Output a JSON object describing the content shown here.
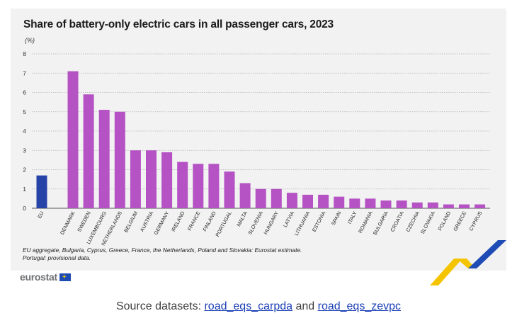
{
  "chart_data": {
    "type": "bar",
    "title": "Share of battery-only electric cars in all passenger cars, 2023",
    "unit": "(%)",
    "categories": [
      "EU",
      "DENMARK",
      "SWEDEN",
      "LUXEMBOURG",
      "NETHERLANDS",
      "BELGIUM",
      "AUSTRIA",
      "GERMANY",
      "IRELAND",
      "FRANCE",
      "FINLAND",
      "PORTUGAL",
      "MALTA",
      "SLOVENIA",
      "HUNGARY",
      "LATVIA",
      "LITHUANIA",
      "ESTONIA",
      "SPAIN",
      "ITALY",
      "ROMANIA",
      "BULGARIA",
      "CROATIA",
      "CZECHIA",
      "SLOVAKIA",
      "POLAND",
      "GREECE",
      "CYPRUS"
    ],
    "values": [
      1.7,
      7.1,
      5.9,
      5.1,
      5.0,
      3.0,
      3.0,
      2.9,
      2.4,
      2.3,
      2.3,
      1.9,
      1.3,
      1.0,
      1.0,
      0.8,
      0.7,
      0.7,
      0.6,
      0.5,
      0.5,
      0.4,
      0.4,
      0.3,
      0.3,
      0.2,
      0.2,
      0.2
    ],
    "y_ticks": [
      0,
      1,
      2,
      3,
      4,
      5,
      6,
      7,
      8
    ],
    "ylim": [
      0,
      8
    ],
    "grid": true,
    "colors": {
      "eu": "#2644a8",
      "country": "#b553c4"
    }
  },
  "notes": [
    "EU aggregate, Bulgaria, Cyprus, Greece, France, the Netherlands, Poland and Slovakia: Eurostat estimate.",
    "Portugal: provisional data."
  ],
  "logo_text": "eurostat",
  "source": {
    "prefix": "Source datasets: ",
    "link1": "road_eqs_carpda",
    "middle": " and ",
    "link2": "road_eqs_zevpc"
  }
}
